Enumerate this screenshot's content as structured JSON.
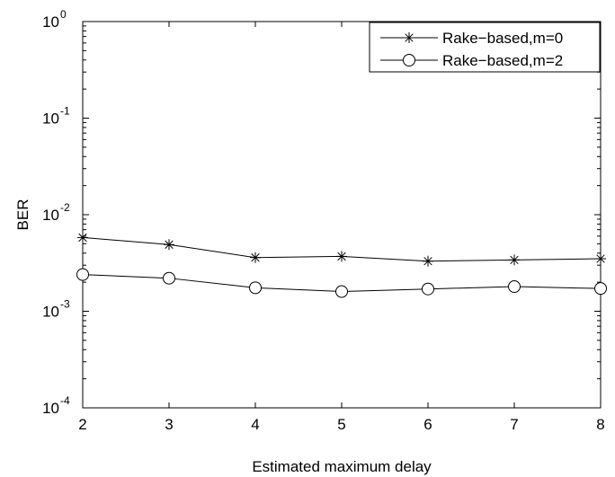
{
  "chart_data": {
    "type": "line",
    "title": "",
    "xlabel": "Estimated maximum delay",
    "ylabel": "BER",
    "x": [
      2,
      3,
      4,
      5,
      6,
      7,
      8
    ],
    "xlim": [
      2,
      8
    ],
    "xticks": [
      "2",
      "3",
      "4",
      "5",
      "6",
      "7",
      "8"
    ],
    "ylim": [
      0.0001,
      1
    ],
    "yscale": "log",
    "yticks": [
      {
        "base": "10",
        "exp": "0"
      },
      {
        "base": "10",
        "exp": "-1"
      },
      {
        "base": "10",
        "exp": "-2"
      },
      {
        "base": "10",
        "exp": "-3"
      },
      {
        "base": "10",
        "exp": "-4"
      }
    ],
    "grid": false,
    "legend_position": "top-right",
    "series": [
      {
        "name": "Rake−based,m=0",
        "marker": "asterisk",
        "color": "#000000",
        "values": [
          0.0058,
          0.0049,
          0.0036,
          0.0037,
          0.0033,
          0.0034,
          0.0035
        ]
      },
      {
        "name": "Rake−based,m=2",
        "marker": "circle",
        "color": "#000000",
        "values": [
          0.0024,
          0.0022,
          0.00175,
          0.0016,
          0.0017,
          0.0018,
          0.00172
        ]
      }
    ]
  }
}
